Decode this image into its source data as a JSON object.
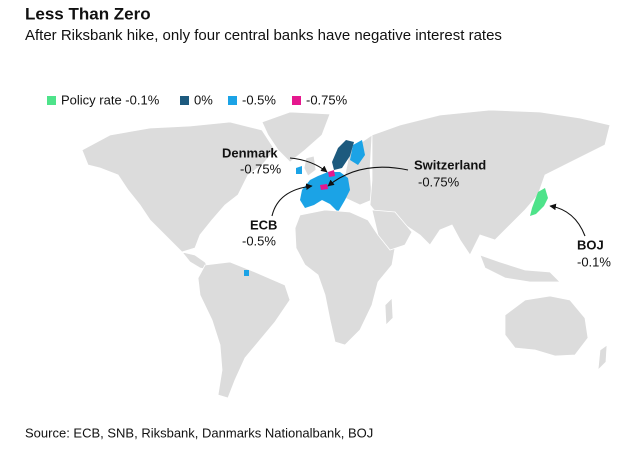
{
  "header": {
    "title": "Less Than Zero",
    "subtitle": "After Riksbank hike, only four central banks have negative interest rates"
  },
  "legend": {
    "items": [
      {
        "label": "Policy rate -0.1%",
        "color": "#4ee38a"
      },
      {
        "label": "0%",
        "color": "#1d5a7e"
      },
      {
        "label": "-0.5%",
        "color": "#1ba3e6"
      },
      {
        "label": "-0.75%",
        "color": "#e5188e"
      }
    ]
  },
  "annotations": [
    {
      "name": "Denmark",
      "rate": "-0.75%"
    },
    {
      "name": "Switzerland",
      "rate": "-0.75%"
    },
    {
      "name": "ECB",
      "rate": "-0.5%"
    },
    {
      "name": "BOJ",
      "rate": "-0.1%"
    }
  ],
  "source": "Source: ECB, SNB, Riksbank, Danmarks Nationalbank, BOJ"
}
